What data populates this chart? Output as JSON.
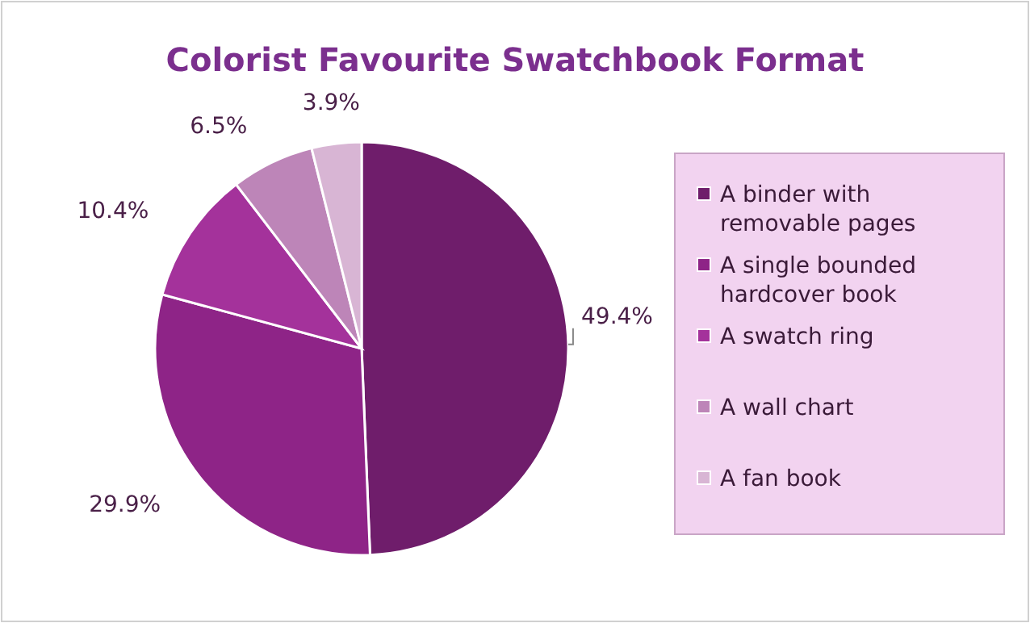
{
  "chart_data": {
    "type": "pie",
    "title": "Colorist Favourite Swatchbook Format",
    "categories": [
      "A binder with removable pages",
      "A single bounded hardcover book",
      "A swatch ring",
      "A wall chart",
      "A fan book"
    ],
    "values": [
      49.4,
      29.9,
      10.4,
      6.5,
      3.9
    ],
    "colors": [
      "#6f1d6b",
      "#8e2487",
      "#a4329b",
      "#bd85b8",
      "#d8b5d4"
    ],
    "value_labels": [
      "49.4%",
      "29.9%",
      "10.4%",
      "6.5%",
      "3.9%"
    ],
    "legend": "right"
  }
}
